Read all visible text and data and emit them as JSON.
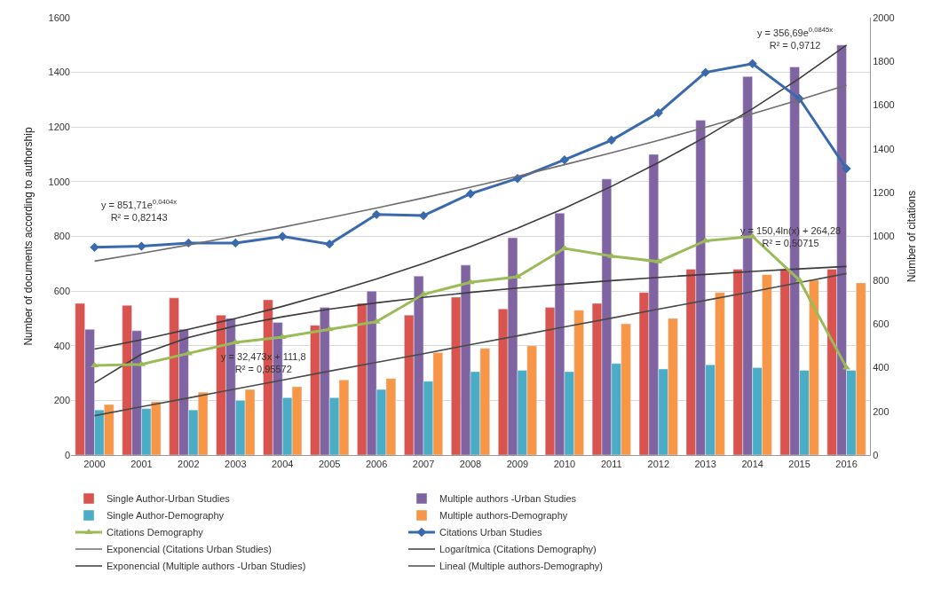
{
  "chart_data": {
    "type": "bar",
    "categories": [
      "2000",
      "2001",
      "2002",
      "2003",
      "2004",
      "2005",
      "2006",
      "2007",
      "2008",
      "2009",
      "2010",
      "2011",
      "2012",
      "2013",
      "2014",
      "2015",
      "2016"
    ],
    "ylabel": "Number of documents according to authorship",
    "y2label": "Númber of citations",
    "ylim": [
      0,
      1600
    ],
    "yticks": [
      0,
      200,
      400,
      600,
      800,
      1000,
      1200,
      1400,
      1600
    ],
    "y2lim": [
      0,
      2000
    ],
    "y2ticks": [
      0,
      200,
      400,
      600,
      800,
      1000,
      1200,
      1400,
      1600,
      1800,
      2000
    ],
    "grid": "y",
    "legend": "bottom",
    "series": [
      {
        "name": "Single Author-Urban Studies",
        "color": "#d9534f",
        "values": [
          555,
          548,
          575,
          512,
          568,
          475,
          555,
          512,
          578,
          535,
          540,
          555,
          595,
          680,
          680,
          680,
          680
        ]
      },
      {
        "name": "Multiple authors -Urban Studies",
        "color": "#8064a2",
        "values": [
          460,
          455,
          460,
          500,
          485,
          540,
          600,
          655,
          695,
          795,
          885,
          1010,
          1100,
          1225,
          1385,
          1420,
          1500
        ]
      },
      {
        "name": "Single Author-Demography",
        "color": "#4bacc6",
        "values": [
          165,
          170,
          165,
          200,
          210,
          210,
          240,
          270,
          305,
          310,
          305,
          335,
          315,
          330,
          320,
          310,
          310
        ]
      },
      {
        "name": "Multiple authors-Demography",
        "color": "#f79646",
        "values": [
          185,
          195,
          230,
          240,
          250,
          275,
          280,
          375,
          390,
          400,
          530,
          480,
          500,
          595,
          660,
          640,
          630
        ]
      },
      {
        "name": "Citations Demography",
        "type": "line",
        "axis": "y2",
        "color": "#9bbb59",
        "marker": "triangle",
        "line_style": "solid",
        "values": [
          410,
          415,
          465,
          515,
          540,
          575,
          610,
          735,
          790,
          815,
          945,
          910,
          885,
          980,
          1000,
          800,
          400
        ]
      },
      {
        "name": "Citations Urban Studies",
        "type": "line",
        "axis": "y2",
        "color": "#3a6aad",
        "marker": "diamond",
        "line_style": "solid",
        "values": [
          950,
          955,
          970,
          970,
          1000,
          965,
          1100,
          1095,
          1195,
          1265,
          1350,
          1440,
          1565,
          1750,
          1790,
          1630,
          1310
        ]
      },
      {
        "name": "Exponencial (Citations Urban Studies)",
        "type": "line",
        "axis": "y2",
        "color": "#6e6e6e",
        "marker": "none",
        "line_style": "solid",
        "values": [
          887,
          923,
          961,
          1001,
          1042,
          1085,
          1130,
          1176,
          1225,
          1275,
          1328,
          1382,
          1439,
          1499,
          1561,
          1625,
          1692
        ]
      },
      {
        "name": "Logarítmica (Citations Demography)",
        "type": "line",
        "color": "#3c3c3c",
        "marker": "none",
        "line_style": "solid",
        "values": [
          264,
          369,
          430,
          473,
          506,
          534,
          557,
          577,
          595,
          611,
          625,
          638,
          650,
          661,
          672,
          681,
          690
        ]
      },
      {
        "name": "Exponencial (Multiple authors -Urban Studies)",
        "type": "line",
        "color": "#3c3c3c",
        "marker": "none",
        "line_style": "solid",
        "values": [
          388,
          422,
          460,
          500,
          544,
          592,
          644,
          701,
          763,
          830,
          903,
          983,
          1070,
          1164,
          1267,
          1378,
          1500
        ]
      },
      {
        "name": "Lineal (Multiple authors-Demography)",
        "type": "line",
        "color": "#4a4a4a",
        "marker": "none",
        "line_style": "solid",
        "values": [
          144,
          177,
          209,
          242,
          274,
          307,
          339,
          371,
          404,
          436,
          469,
          501,
          534,
          566,
          598,
          631,
          664
        ]
      }
    ],
    "annotations": [
      "y = 851,71e$^{0,0404x}$\nR² = 0,82143",
      "y = 356,69e$^{0,0845x}$\nR² = 0,9712",
      "y = 150,4ln(x) + 264,28\nR² = 0,50715",
      "y = 32,473x + 111,8\nR² = 0,95572"
    ]
  }
}
